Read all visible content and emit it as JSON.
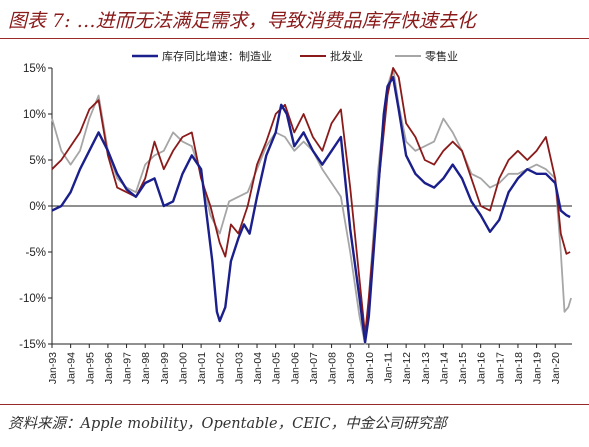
{
  "header": {
    "title": "图表 7: …进而无法满足需求，导致消费品库存快速去化"
  },
  "footer": {
    "source": "资料来源：Apple mobility，Opentable，CEIC，中金公司研究部"
  },
  "chart_data": {
    "type": "line",
    "title": "",
    "xlabel": "",
    "ylabel": "",
    "ylim": [
      -15,
      15
    ],
    "yticks": [
      15,
      10,
      5,
      0,
      -5,
      -10,
      -15
    ],
    "ytick_labels": [
      "15%",
      "10%",
      "5%",
      "0%",
      "-5%",
      "-10%",
      "-15%"
    ],
    "x_start_year": 1993,
    "x_end_year": 2020.9,
    "xtick_labels": [
      "Jan-93",
      "Jan-94",
      "Jan-95",
      "Jan-96",
      "Jan-97",
      "Jan-98",
      "Jan-99",
      "Jan-00",
      "Jan-01",
      "Jan-02",
      "Jan-03",
      "Jan-04",
      "Jan-05",
      "Jan-06",
      "Jan-07",
      "Jan-08",
      "Jan-09",
      "Jan-10",
      "Jan-11",
      "Jan-12",
      "Jan-13",
      "Jan-14",
      "Jan-15",
      "Jan-16",
      "Jan-17",
      "Jan-18",
      "Jan-19",
      "Jan-20"
    ],
    "grid": false,
    "legend_position": "top-center",
    "series": [
      {
        "name": "库存同比增速：制造业",
        "color": "#1a1f8c",
        "points": [
          [
            1993.0,
            -0.5
          ],
          [
            1993.5,
            0.0
          ],
          [
            1994.0,
            1.5
          ],
          [
            1994.5,
            4.0
          ],
          [
            1995.0,
            6.0
          ],
          [
            1995.5,
            8.0
          ],
          [
            1996.0,
            6.0
          ],
          [
            1996.5,
            3.5
          ],
          [
            1997.0,
            1.8
          ],
          [
            1997.5,
            1.0
          ],
          [
            1998.0,
            2.5
          ],
          [
            1998.5,
            3.0
          ],
          [
            1999.0,
            0.0
          ],
          [
            1999.5,
            0.5
          ],
          [
            2000.0,
            3.5
          ],
          [
            2000.5,
            5.5
          ],
          [
            2001.0,
            4.0
          ],
          [
            2001.3,
            -1.0
          ],
          [
            2001.6,
            -6.0
          ],
          [
            2001.85,
            -11.5
          ],
          [
            2002.0,
            -12.5
          ],
          [
            2002.3,
            -11.0
          ],
          [
            2002.6,
            -6.0
          ],
          [
            2003.0,
            -3.5
          ],
          [
            2003.3,
            -2.0
          ],
          [
            2003.6,
            -3.0
          ],
          [
            2004.0,
            1.0
          ],
          [
            2004.5,
            5.5
          ],
          [
            2005.0,
            8.0
          ],
          [
            2005.3,
            11.0
          ],
          [
            2005.6,
            10.0
          ],
          [
            2006.0,
            6.5
          ],
          [
            2006.5,
            8.0
          ],
          [
            2007.0,
            6.0
          ],
          [
            2007.5,
            4.5
          ],
          [
            2008.0,
            6.0
          ],
          [
            2008.5,
            7.5
          ],
          [
            2009.0,
            -2.5
          ],
          [
            2009.5,
            -10.0
          ],
          [
            2009.8,
            -14.8
          ],
          [
            2010.0,
            -12.0
          ],
          [
            2010.4,
            -1.0
          ],
          [
            2010.8,
            10.0
          ],
          [
            2011.0,
            13.0
          ],
          [
            2011.3,
            14.0
          ],
          [
            2011.6,
            10.5
          ],
          [
            2012.0,
            5.5
          ],
          [
            2012.5,
            3.5
          ],
          [
            2013.0,
            2.5
          ],
          [
            2013.5,
            2.0
          ],
          [
            2014.0,
            3.0
          ],
          [
            2014.5,
            4.5
          ],
          [
            2015.0,
            3.0
          ],
          [
            2015.5,
            0.5
          ],
          [
            2016.0,
            -1.0
          ],
          [
            2016.5,
            -2.8
          ],
          [
            2017.0,
            -1.5
          ],
          [
            2017.5,
            1.5
          ],
          [
            2018.0,
            3.0
          ],
          [
            2018.5,
            4.0
          ],
          [
            2019.0,
            3.5
          ],
          [
            2019.5,
            3.5
          ],
          [
            2020.0,
            2.5
          ],
          [
            2020.3,
            -0.5
          ],
          [
            2020.6,
            -1.0
          ],
          [
            2020.8,
            -1.2
          ]
        ]
      },
      {
        "name": "批发业",
        "color": "#8b1a1a",
        "points": [
          [
            1993.0,
            4.0
          ],
          [
            1993.5,
            5.0
          ],
          [
            1994.0,
            6.5
          ],
          [
            1994.5,
            8.0
          ],
          [
            1995.0,
            10.5
          ],
          [
            1995.5,
            11.5
          ],
          [
            1996.0,
            5.5
          ],
          [
            1996.5,
            2.0
          ],
          [
            1997.0,
            1.5
          ],
          [
            1997.5,
            1.0
          ],
          [
            1998.0,
            3.0
          ],
          [
            1998.5,
            7.0
          ],
          [
            1999.0,
            4.0
          ],
          [
            1999.5,
            6.0
          ],
          [
            2000.0,
            7.5
          ],
          [
            2000.5,
            8.0
          ],
          [
            2001.0,
            3.0
          ],
          [
            2001.5,
            0.0
          ],
          [
            2002.0,
            -4.0
          ],
          [
            2002.3,
            -5.5
          ],
          [
            2002.6,
            -2.0
          ],
          [
            2003.0,
            -3.0
          ],
          [
            2003.5,
            0.0
          ],
          [
            2004.0,
            4.5
          ],
          [
            2004.5,
            7.0
          ],
          [
            2005.0,
            10.0
          ],
          [
            2005.5,
            11.0
          ],
          [
            2006.0,
            8.0
          ],
          [
            2006.5,
            10.0
          ],
          [
            2007.0,
            7.5
          ],
          [
            2007.5,
            6.0
          ],
          [
            2008.0,
            9.0
          ],
          [
            2008.5,
            10.5
          ],
          [
            2009.0,
            2.0
          ],
          [
            2009.5,
            -8.0
          ],
          [
            2009.8,
            -14.0
          ],
          [
            2010.0,
            -10.0
          ],
          [
            2010.5,
            2.0
          ],
          [
            2011.0,
            12.0
          ],
          [
            2011.3,
            15.0
          ],
          [
            2011.6,
            14.0
          ],
          [
            2012.0,
            9.0
          ],
          [
            2012.5,
            7.5
          ],
          [
            2013.0,
            5.0
          ],
          [
            2013.5,
            4.5
          ],
          [
            2014.0,
            6.0
          ],
          [
            2014.5,
            7.0
          ],
          [
            2015.0,
            6.0
          ],
          [
            2015.5,
            3.0
          ],
          [
            2016.0,
            0.0
          ],
          [
            2016.5,
            -0.5
          ],
          [
            2017.0,
            3.0
          ],
          [
            2017.5,
            5.0
          ],
          [
            2018.0,
            6.0
          ],
          [
            2018.5,
            5.0
          ],
          [
            2019.0,
            6.0
          ],
          [
            2019.5,
            7.5
          ],
          [
            2020.0,
            3.0
          ],
          [
            2020.3,
            -3.0
          ],
          [
            2020.6,
            -5.2
          ],
          [
            2020.8,
            -5.0
          ]
        ]
      },
      {
        "name": "零售业",
        "color": "#a6a6a6",
        "points": [
          [
            1993.0,
            9.5
          ],
          [
            1993.5,
            6.0
          ],
          [
            1994.0,
            4.5
          ],
          [
            1994.5,
            6.0
          ],
          [
            1995.0,
            9.5
          ],
          [
            1995.5,
            12.0
          ],
          [
            1996.0,
            6.0
          ],
          [
            1996.5,
            3.0
          ],
          [
            1997.0,
            2.0
          ],
          [
            1997.5,
            1.5
          ],
          [
            1998.0,
            4.5
          ],
          [
            1998.5,
            5.5
          ],
          [
            1999.0,
            6.0
          ],
          [
            1999.5,
            8.0
          ],
          [
            2000.0,
            7.0
          ],
          [
            2000.5,
            6.5
          ],
          [
            2001.0,
            3.5
          ],
          [
            2001.5,
            -1.0
          ],
          [
            2002.0,
            -3.0
          ],
          [
            2002.5,
            0.5
          ],
          [
            2003.0,
            1.0
          ],
          [
            2003.5,
            1.5
          ],
          [
            2004.0,
            4.0
          ],
          [
            2004.5,
            6.5
          ],
          [
            2005.0,
            8.0
          ],
          [
            2005.5,
            7.5
          ],
          [
            2006.0,
            6.0
          ],
          [
            2006.5,
            7.0
          ],
          [
            2007.0,
            6.0
          ],
          [
            2007.5,
            4.0
          ],
          [
            2008.0,
            2.5
          ],
          [
            2008.5,
            1.0
          ],
          [
            2009.0,
            -5.0
          ],
          [
            2009.5,
            -12.0
          ],
          [
            2009.8,
            -15.0
          ],
          [
            2010.0,
            -10.0
          ],
          [
            2010.5,
            4.0
          ],
          [
            2011.0,
            13.0
          ],
          [
            2011.3,
            16.0
          ],
          [
            2011.6,
            11.0
          ],
          [
            2012.0,
            7.0
          ],
          [
            2012.5,
            6.0
          ],
          [
            2013.0,
            6.5
          ],
          [
            2013.5,
            7.0
          ],
          [
            2014.0,
            9.5
          ],
          [
            2014.5,
            8.0
          ],
          [
            2015.0,
            6.0
          ],
          [
            2015.5,
            3.5
          ],
          [
            2016.0,
            3.0
          ],
          [
            2016.5,
            2.0
          ],
          [
            2017.0,
            2.5
          ],
          [
            2017.5,
            3.5
          ],
          [
            2018.0,
            3.5
          ],
          [
            2018.5,
            4.0
          ],
          [
            2019.0,
            4.5
          ],
          [
            2019.5,
            4.0
          ],
          [
            2020.0,
            3.0
          ],
          [
            2020.3,
            -5.0
          ],
          [
            2020.5,
            -11.5
          ],
          [
            2020.7,
            -11.0
          ],
          [
            2020.85,
            -10.0
          ]
        ]
      }
    ]
  }
}
